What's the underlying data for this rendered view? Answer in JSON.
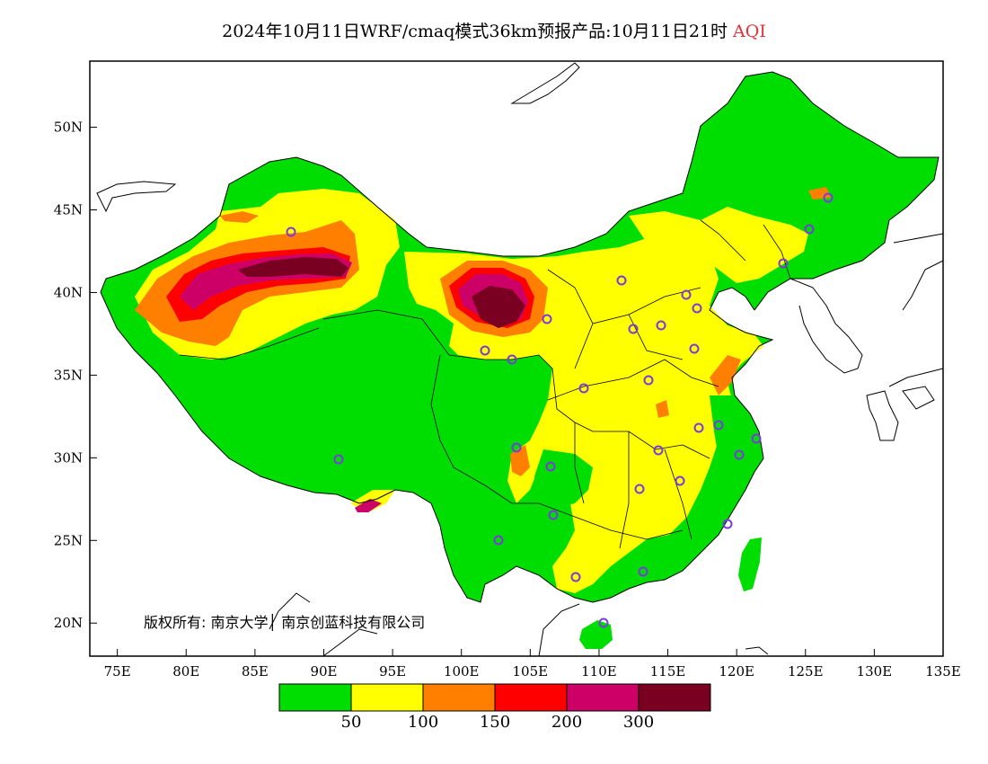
{
  "title": {
    "main": "2024年10月11日WRF/cmaq模式36km预报产品:10月11日21时",
    "variable": "AQI"
  },
  "map": {
    "lon_range": [
      73,
      135
    ],
    "lat_range": [
      18,
      54
    ],
    "lon_ticks": [
      "75E",
      "80E",
      "85E",
      "90E",
      "95E",
      "100E",
      "105E",
      "110E",
      "115E",
      "120E",
      "125E",
      "130E",
      "135E"
    ],
    "lat_ticks": [
      "20N",
      "25N",
      "30N",
      "35N",
      "40N",
      "45N",
      "50N"
    ]
  },
  "copyright": "版权所有: 南京大学│ 南京创蓝科技有限公司",
  "legend": {
    "bins": [
      {
        "range": "0-50",
        "color": "#00dd00"
      },
      {
        "range": "50-100",
        "color": "#ffff00"
      },
      {
        "range": "100-150",
        "color": "#ff7f00"
      },
      {
        "range": "150-200",
        "color": "#ff0000"
      },
      {
        "range": "200-300",
        "color": "#cc0066"
      },
      {
        "range": ">300",
        "color": "#7a0022"
      }
    ],
    "labels": [
      "50",
      "100",
      "150",
      "200",
      "300"
    ]
  }
}
